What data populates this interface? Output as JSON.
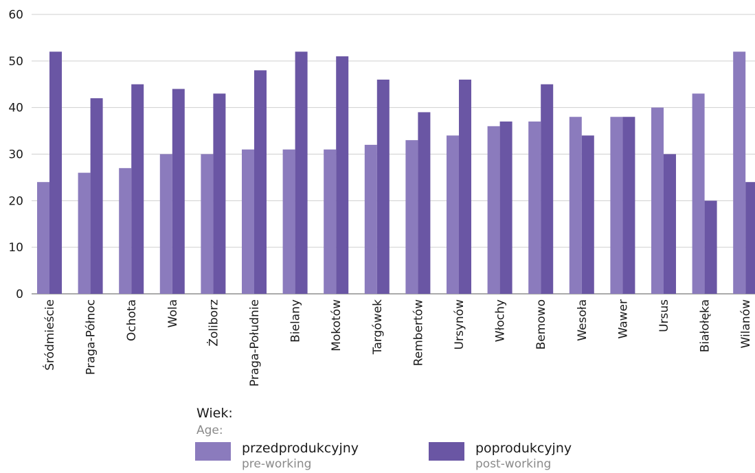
{
  "chart_data": {
    "type": "bar",
    "categories": [
      "Śródmieście",
      "Praga-Północ",
      "Ochota",
      "Wola",
      "Żoliborz",
      "Praga-Południe",
      "Bielany",
      "Mokotów",
      "Targówek",
      "Rembertów",
      "Ursynów",
      "Włochy",
      "Bemowo",
      "Wesoła",
      "Wawer",
      "Ursus",
      "Białołęka",
      "Wilanów"
    ],
    "series": [
      {
        "name": "przedprodukcyjny",
        "name_en": "pre-working",
        "color": "#8b7bbd",
        "values": [
          24,
          26,
          27,
          30,
          30,
          31,
          31,
          31,
          32,
          33,
          34,
          36,
          37,
          38,
          38,
          40,
          43,
          52
        ]
      },
      {
        "name": "poprodukcyjny",
        "name_en": "post-working",
        "color": "#6a56a4",
        "values": [
          52,
          42,
          45,
          44,
          43,
          48,
          52,
          51,
          46,
          39,
          46,
          37,
          45,
          34,
          38,
          30,
          20,
          24
        ]
      }
    ],
    "ylim": [
      0,
      60
    ],
    "yticks": [
      0,
      10,
      20,
      30,
      40,
      50,
      60
    ],
    "grid": true,
    "legend_position": "bottom"
  },
  "legend": {
    "title": "Wiek:",
    "subtitle": "Age:"
  }
}
